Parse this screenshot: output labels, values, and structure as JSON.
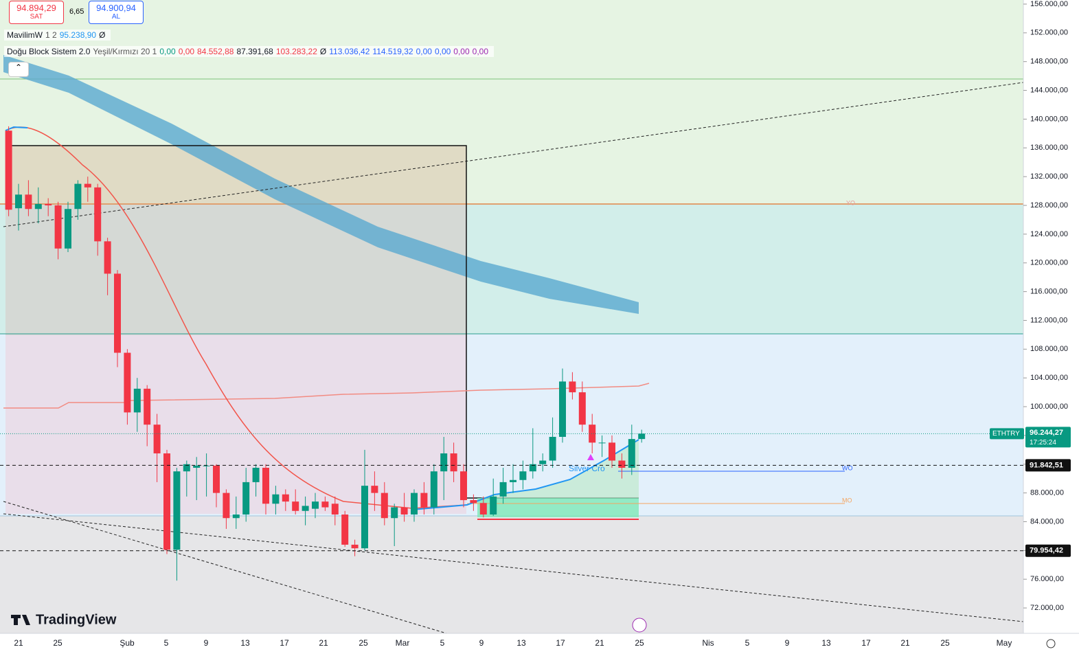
{
  "header": {
    "sell_price": "94.894,29",
    "sell_label": "SAT",
    "spread": "6,65",
    "buy_price": "94.900,94",
    "buy_label": "AL"
  },
  "indicators": [
    {
      "name": "MavilimW",
      "params": "1 2",
      "values": [
        "95.238,90",
        "Ø"
      ]
    },
    {
      "name": "Doğu Block Sistem 2.0",
      "params": "Yeşil/Kırmızı 20 1",
      "values": [
        "0,00",
        "0,00",
        "84.552,88",
        "87.391,68",
        "103.283,22",
        "Ø",
        "113.036,42",
        "114.519,32",
        "0,00",
        "0,00",
        "0,00",
        "0,00"
      ]
    }
  ],
  "annotations": [
    "YO",
    "WO",
    "MO",
    "Silver Cro"
  ],
  "logo": "TradingView",
  "chart_data": {
    "type": "candlestick",
    "symbol": "ETHTRY",
    "open": [
      138400,
      127600,
      129500,
      127500,
      128200,
      128000,
      122000,
      127500,
      131000,
      130500,
      123000,
      118500,
      107500,
      99200,
      102500,
      97500,
      93500,
      80100,
      91000,
      91500,
      91800,
      91800,
      88000,
      84500,
      85000,
      89500,
      91500,
      86500,
      87800,
      86800,
      85500,
      85800,
      86800,
      86500,
      85000,
      80800,
      80300,
      89000,
      88000,
      84500,
      86000,
      85000,
      88000,
      86000,
      91000,
      93500,
      91000,
      87000,
      86600,
      85000,
      87500,
      89500,
      89800,
      91000,
      92000,
      92500,
      95800,
      103500,
      102000,
      97500,
      95000,
      95000,
      92500,
      91500,
      95500
    ],
    "high": [
      139000,
      131000,
      131500,
      130500,
      129000,
      128500,
      128500,
      131500,
      132000,
      131000,
      123500,
      119000,
      108000,
      104000,
      103000,
      99000,
      94000,
      91500,
      92500,
      93000,
      93500,
      92000,
      88500,
      87500,
      91500,
      92000,
      92000,
      89000,
      88500,
      88500,
      87500,
      88000,
      87500,
      87500,
      85500,
      81500,
      94000,
      91000,
      89500,
      86500,
      88000,
      88500,
      89500,
      92000,
      95800,
      95000,
      92000,
      87800,
      87500,
      90000,
      91500,
      92000,
      92500,
      97000,
      93500,
      98500,
      105300,
      104800,
      103500,
      99000,
      96000,
      96000,
      93500,
      97500,
      96800
    ],
    "low": [
      126500,
      124500,
      126500,
      125500,
      126500,
      120500,
      121500,
      126000,
      128500,
      121000,
      115500,
      105500,
      97500,
      96500,
      94500,
      89500,
      79500,
      75800,
      87500,
      87000,
      87500,
      86000,
      83000,
      83000,
      84000,
      87500,
      85000,
      85000,
      85500,
      85000,
      83500,
      84500,
      85500,
      83500,
      80500,
      79200,
      80000,
      85500,
      83500,
      80600,
      84000,
      84000,
      85000,
      85000,
      87000,
      89500,
      86000,
      85500,
      84600,
      84800,
      86500,
      88000,
      88500,
      90000,
      91000,
      91500,
      95000,
      101000,
      96500,
      93500,
      93000,
      91500,
      90000,
      90500,
      95000
    ],
    "close": [
      127400,
      129500,
      127500,
      128200,
      128000,
      122000,
      127500,
      131000,
      130500,
      123000,
      118500,
      107500,
      99200,
      102500,
      97500,
      93500,
      80100,
      91000,
      92000,
      91800,
      91800,
      88000,
      84500,
      85000,
      89500,
      91500,
      86500,
      87800,
      86800,
      85500,
      86200,
      86800,
      86000,
      85000,
      80800,
      80300,
      89000,
      88000,
      84500,
      86000,
      85000,
      88000,
      86000,
      91000,
      93500,
      91000,
      87000,
      86600,
      85000,
      87500,
      89500,
      89800,
      91000,
      92000,
      92500,
      95800,
      103500,
      102000,
      97500,
      95000,
      95000,
      92500,
      91500,
      95500,
      96244.27
    ],
    "x_labels": [
      "21",
      "25",
      "Şub",
      "5",
      "9",
      "13",
      "17",
      "21",
      "25",
      "Mar",
      "5",
      "9",
      "13",
      "17",
      "21",
      "25",
      "Nis",
      "5",
      "9",
      "13",
      "17",
      "21",
      "25",
      "May"
    ],
    "ylim": [
      68470,
      156570
    ],
    "yticks": [
      {
        "value": 72000,
        "label": "72.000,00"
      },
      {
        "value": 76000,
        "label": "76.000,00"
      },
      {
        "value": 80000,
        "label": "80.000,00"
      },
      {
        "value": 84000,
        "label": "84.000,00"
      },
      {
        "value": 88000,
        "label": "88.000,00"
      },
      {
        "value": 92000,
        "label": "92.000,00"
      },
      {
        "value": 96000,
        "label": "96.000,00"
      },
      {
        "value": 100000,
        "label": "100.000,00"
      },
      {
        "value": 104000,
        "label": "104.000,00"
      },
      {
        "value": 108000,
        "label": "108.000,00"
      },
      {
        "value": 112000,
        "label": "112.000,00"
      },
      {
        "value": 116000,
        "label": "116.000,00"
      },
      {
        "value": 120000,
        "label": "120.000,00"
      },
      {
        "value": 124000,
        "label": "124.000,00"
      },
      {
        "value": 128000,
        "label": "128.000,00"
      },
      {
        "value": 132000,
        "label": "132.000,00"
      },
      {
        "value": 136000,
        "label": "136.000,00"
      },
      {
        "value": 140000,
        "label": "140.000,00"
      },
      {
        "value": 144000,
        "label": "144.000,00"
      },
      {
        "value": 148000,
        "label": "148.000,00"
      },
      {
        "value": 152000,
        "label": "152.000,00"
      },
      {
        "value": 156000,
        "label": "156.000,00"
      }
    ],
    "up_color": "#089981",
    "down_color": "#f23645",
    "last_price": {
      "value": 96244.27,
      "label": "96.244,27",
      "countdown": "17:25:24",
      "color": "#089981"
    },
    "price_lines": [
      {
        "value": 91842.51,
        "label": "91.842,51"
      },
      {
        "value": 79954.42,
        "label": "79.954,42"
      }
    ]
  }
}
